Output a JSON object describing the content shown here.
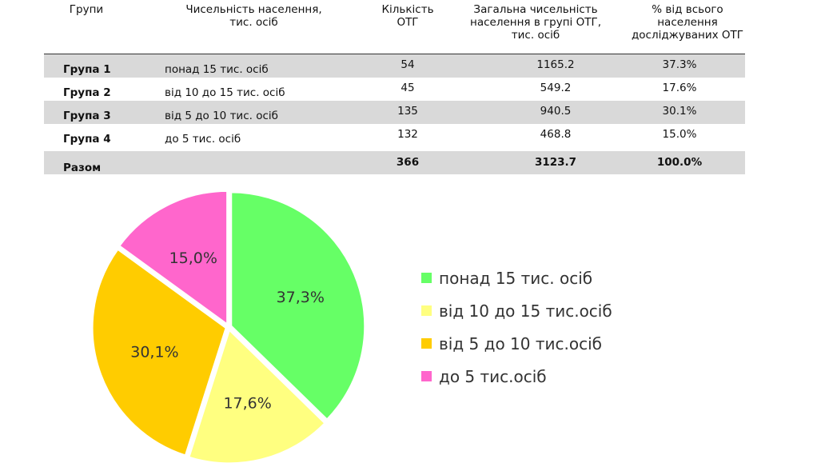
{
  "table": {
    "headers": {
      "group": "Групи",
      "population_line1": "Чисельність населення,",
      "population_line2": "тис. осіб",
      "count_line1": "Кількість",
      "count_line2": "ОТГ",
      "total_line1": "Загальна чисельність",
      "total_line2": "населення в групі ОТГ,",
      "total_line3": "тис. осіб",
      "pct_line1": "% від всього",
      "pct_line2": "населення",
      "pct_line3": "досліджуваних ОТГ"
    },
    "rows": [
      {
        "group": "Група 1",
        "label": "понад 15 тис. осіб",
        "count": "54",
        "total": "1165.2",
        "pct": "37.3%"
      },
      {
        "group": "Група 2",
        "label": "від 10 до 15 тис. осіб",
        "count": "45",
        "total": "549.2",
        "pct": "17.6%"
      },
      {
        "group": "Група 3",
        "label": "від 5 до 10 тис. осіб",
        "count": "135",
        "total": "940.5",
        "pct": "30.1%"
      },
      {
        "group": "Група 4",
        "label": "до 5 тис. осіб",
        "count": "132",
        "total": "468.8",
        "pct": "15.0%"
      }
    ],
    "total_row": {
      "group": "Разом",
      "count": "366",
      "total": "3123.7",
      "pct": "100.0%"
    }
  },
  "chart_data": {
    "type": "pie",
    "categories": [
      "понад 15 тис. осіб",
      "від 10 до 15 тис.осіб",
      "від 5 до 10 тис.осіб",
      "до 5 тис.осіб"
    ],
    "values": [
      37.3,
      17.6,
      30.1,
      15.0
    ],
    "data_labels": [
      "37,3%",
      "17,6%",
      "30,1%",
      "15,0%"
    ],
    "colors": [
      "#66ff66",
      "#ffff80",
      "#ffcc00",
      "#ff66cc"
    ],
    "legend_position": "right",
    "start_angle": "12 o'clock",
    "direction": "clockwise"
  }
}
